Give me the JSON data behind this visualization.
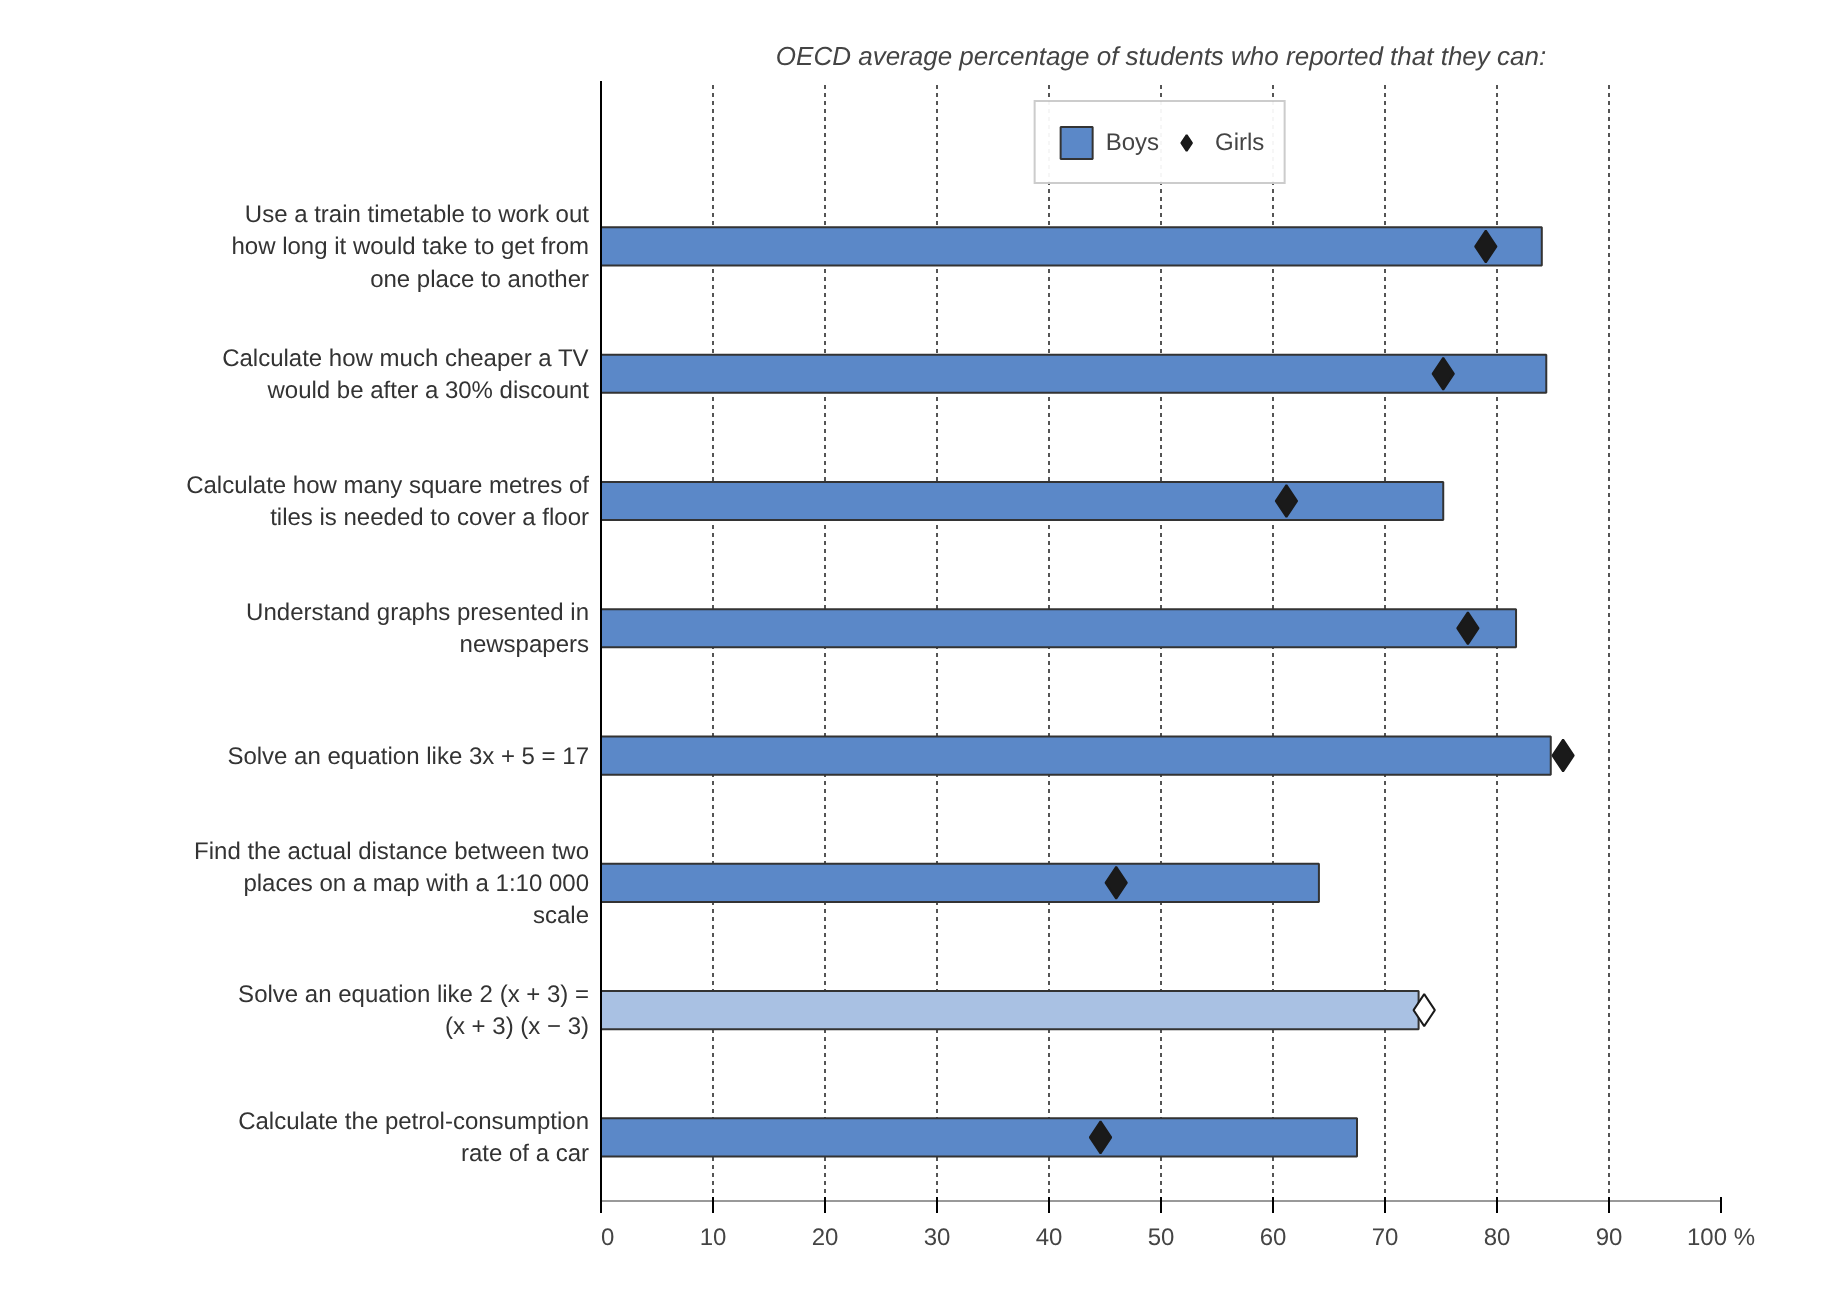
{
  "chart_data": {
    "type": "bar",
    "orientation": "horizontal",
    "title": "OECD average percentage of students who reported that they can:",
    "categories": [
      "Use a train timetable to work out how long it would take to get from one place to another",
      "Calculate how much cheaper a TV would be after a 30% discount",
      "Calculate how many square metres of tiles is needed to cover a floor",
      "Understand graphs presented in newspapers",
      "Solve an equation like 3x + 5 = 17",
      "Find the actual distance between two places on a map with a 1:10 000 scale",
      "Solve an equation like 2 (x + 3) = (x + 3) (x − 3)",
      "Calculate the petrol-consumption rate of a car"
    ],
    "series": [
      {
        "name": "Boys",
        "color": "#5b88c8",
        "colors": [
          "#5b88c8",
          "#5b88c8",
          "#5b88c8",
          "#5b88c8",
          "#5b88c8",
          "#5b88c8",
          "#a9c1e3",
          "#5b88c8"
        ],
        "values": [
          84,
          84.4,
          75.2,
          81.7,
          84.8,
          64.1,
          73,
          67.5
        ]
      },
      {
        "name": "Girls",
        "type": "scatter",
        "color": "#1a1a1a",
        "colors": [
          "#1a1a1a",
          "#1a1a1a",
          "#1a1a1a",
          "#1a1a1a",
          "#1a1a1a",
          "#1a1a1a",
          "#ffffff",
          "#1a1a1a"
        ],
        "values": [
          79,
          75.2,
          61.2,
          77.4,
          85.9,
          46,
          73.5,
          44.6
        ],
        "marker": "diamond"
      }
    ],
    "xlim": [
      0,
      100
    ],
    "xticks": [
      0,
      10,
      20,
      30,
      40,
      50,
      60,
      70,
      80,
      90,
      {
        "value": 100,
        "label": "100 %"
      }
    ],
    "grid": "x",
    "legend": "top"
  }
}
